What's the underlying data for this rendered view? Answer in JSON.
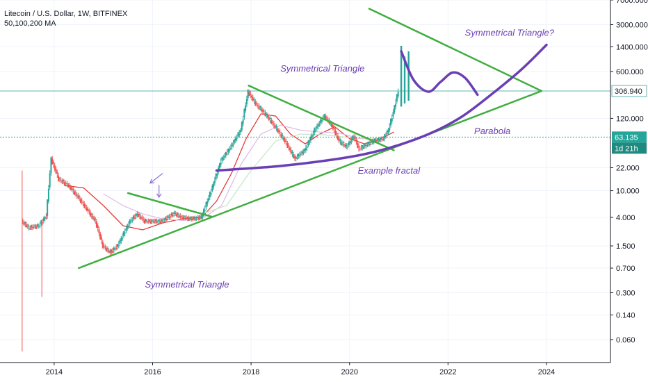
{
  "header": {
    "title": "Litecoin / U.S. Dollar, 1W, BITFINEX",
    "ma_label": "50,100,200 MA"
  },
  "chart_data": {
    "type": "candlestick",
    "scale": "log",
    "x_range": [
      2012.9,
      2025.3
    ],
    "y_range": [
      0.03,
      7000
    ],
    "x_ticks": [
      {
        "value": 2014,
        "label": "2014"
      },
      {
        "value": 2016,
        "label": "2016"
      },
      {
        "value": 2018,
        "label": "2018"
      },
      {
        "value": 2020,
        "label": "2020"
      },
      {
        "value": 2022,
        "label": "2022"
      },
      {
        "value": 2024,
        "label": "2024"
      }
    ],
    "y_ticks": [
      {
        "value": 7000,
        "label": "7000.000"
      },
      {
        "value": 3000,
        "label": "3000.000"
      },
      {
        "value": 1400,
        "label": "1400.000"
      },
      {
        "value": 600,
        "label": "600.000"
      },
      {
        "value": 120,
        "label": "120.000"
      },
      {
        "value": 22,
        "label": "22.000"
      },
      {
        "value": 10,
        "label": "10.000"
      },
      {
        "value": 4,
        "label": "4.000"
      },
      {
        "value": 1.5,
        "label": "1.500"
      },
      {
        "value": 0.7,
        "label": "0.700"
      },
      {
        "value": 0.3,
        "label": "0.300"
      },
      {
        "value": 0.14,
        "label": "0.140"
      },
      {
        "value": 0.06,
        "label": "0.060"
      }
    ],
    "price_levels": [
      {
        "value": 306.94,
        "label": "306.940",
        "color": "#5fb4b0"
      },
      {
        "value": 63.135,
        "label": "63.135",
        "color": "#26a69a",
        "sublabel": "1d 21h"
      }
    ],
    "price_path": [
      [
        2013.35,
        3.5
      ],
      [
        2013.5,
        2.8
      ],
      [
        2013.7,
        3.0
      ],
      [
        2013.85,
        4.2
      ],
      [
        2013.95,
        30
      ],
      [
        2014.1,
        15
      ],
      [
        2014.3,
        12
      ],
      [
        2014.5,
        8
      ],
      [
        2014.7,
        5
      ],
      [
        2014.85,
        3.5
      ],
      [
        2015.0,
        1.5
      ],
      [
        2015.15,
        1.2
      ],
      [
        2015.3,
        1.5
      ],
      [
        2015.45,
        2.5
      ],
      [
        2015.55,
        3.5
      ],
      [
        2015.7,
        4.5
      ],
      [
        2015.85,
        3.5
      ],
      [
        2016.0,
        3.5
      ],
      [
        2016.2,
        3.5
      ],
      [
        2016.45,
        4.6
      ],
      [
        2016.6,
        4.0
      ],
      [
        2016.8,
        3.8
      ],
      [
        2017.0,
        4.0
      ],
      [
        2017.2,
        10
      ],
      [
        2017.4,
        28
      ],
      [
        2017.6,
        45
      ],
      [
        2017.8,
        80
      ],
      [
        2017.95,
        300
      ],
      [
        2018.1,
        200
      ],
      [
        2018.3,
        140
      ],
      [
        2018.5,
        90
      ],
      [
        2018.7,
        55
      ],
      [
        2018.9,
        30
      ],
      [
        2019.1,
        40
      ],
      [
        2019.3,
        80
      ],
      [
        2019.5,
        130
      ],
      [
        2019.65,
        95
      ],
      [
        2019.8,
        55
      ],
      [
        2019.95,
        45
      ],
      [
        2020.1,
        65
      ],
      [
        2020.2,
        42
      ],
      [
        2020.35,
        48
      ],
      [
        2020.5,
        55
      ],
      [
        2020.7,
        60
      ],
      [
        2020.8,
        80
      ],
      [
        2020.9,
        150
      ],
      [
        2021.0,
        306.94
      ]
    ],
    "ma_lines": [
      {
        "name": "MA50",
        "color": "#e53935",
        "points": [
          [
            2014.2,
            12
          ],
          [
            2014.6,
            11
          ],
          [
            2015.0,
            6
          ],
          [
            2015.4,
            3
          ],
          [
            2015.8,
            2.6
          ],
          [
            2016.2,
            3.3
          ],
          [
            2016.6,
            3.8
          ],
          [
            2017.0,
            4.0
          ],
          [
            2017.3,
            7
          ],
          [
            2017.6,
            18
          ],
          [
            2017.9,
            60
          ],
          [
            2018.2,
            140
          ],
          [
            2018.5,
            130
          ],
          [
            2018.8,
            70
          ],
          [
            2019.1,
            50
          ],
          [
            2019.4,
            70
          ],
          [
            2019.7,
            90
          ],
          [
            2020.0,
            60
          ],
          [
            2020.3,
            50
          ],
          [
            2020.6,
            58
          ],
          [
            2020.9,
            75
          ]
        ]
      },
      {
        "name": "MA100",
        "color": "#e1bee7",
        "points": [
          [
            2015.0,
            9
          ],
          [
            2015.4,
            6
          ],
          [
            2015.8,
            4.5
          ],
          [
            2016.2,
            3.8
          ],
          [
            2016.6,
            3.6
          ],
          [
            2017.0,
            3.8
          ],
          [
            2017.4,
            6
          ],
          [
            2017.8,
            25
          ],
          [
            2018.2,
            70
          ],
          [
            2018.6,
            95
          ],
          [
            2019.0,
            80
          ],
          [
            2019.4,
            75
          ],
          [
            2019.8,
            72
          ],
          [
            2020.2,
            60
          ],
          [
            2020.6,
            58
          ]
        ]
      },
      {
        "name": "MA200",
        "color": "#c8e6c9",
        "points": [
          [
            2016.5,
            5.5
          ],
          [
            2017.0,
            4.5
          ],
          [
            2017.5,
            6
          ],
          [
            2018.0,
            20
          ],
          [
            2018.5,
            55
          ],
          [
            2019.0,
            70
          ],
          [
            2019.5,
            68
          ],
          [
            2020.0,
            62
          ],
          [
            2020.6,
            60
          ]
        ]
      }
    ],
    "drawings": [
      {
        "name": "symmetrical-triangle-1-upper",
        "color": "#3fae3f",
        "points": [
          [
            2015.5,
            9.2
          ],
          [
            2017.2,
            4.1
          ]
        ]
      },
      {
        "name": "symmetrical-triangle-1-lower",
        "color": "#3fae3f",
        "points": [
          [
            2014.5,
            0.7
          ],
          [
            2023.9,
            306.94
          ]
        ]
      },
      {
        "name": "symmetrical-triangle-2-upper",
        "color": "#3fae3f",
        "points": [
          [
            2017.95,
            370
          ],
          [
            2020.9,
            40
          ]
        ]
      },
      {
        "name": "big-triangle-upper",
        "color": "#3fae3f",
        "points": [
          [
            2020.4,
            5200
          ],
          [
            2023.9,
            306.94
          ]
        ]
      },
      {
        "name": "parabola",
        "color": "#6a3fb5",
        "points": [
          [
            2017.3,
            20
          ],
          [
            2018.5,
            23
          ],
          [
            2019.5,
            28
          ],
          [
            2020.3,
            35
          ],
          [
            2021.0,
            48
          ],
          [
            2021.7,
            75
          ],
          [
            2022.3,
            130
          ],
          [
            2022.9,
            280
          ],
          [
            2023.5,
            650
          ],
          [
            2024.0,
            1500
          ]
        ]
      },
      {
        "name": "example-fractal",
        "color": "#6a3fb5",
        "points": [
          [
            2021.05,
            1200
          ],
          [
            2021.3,
            450
          ],
          [
            2021.6,
            300
          ],
          [
            2021.85,
            420
          ],
          [
            2022.1,
            580
          ],
          [
            2022.35,
            480
          ],
          [
            2022.6,
            270
          ]
        ]
      },
      {
        "name": "arrow-diagonal",
        "color": "#8e6fd0",
        "points": [
          [
            2016.2,
            18
          ],
          [
            2015.95,
            13
          ]
        ]
      },
      {
        "name": "arrow-vertical",
        "color": "#8e6fd0",
        "points": [
          [
            2016.13,
            12
          ],
          [
            2016.13,
            8
          ]
        ]
      }
    ],
    "annotations": [
      {
        "name": "label-symmetrical-triangle-bottom",
        "text": "Symmetrical Triangle",
        "x": 2016.7,
        "y": 0.36
      },
      {
        "name": "label-symmetrical-triangle-top",
        "text": "Symmetrical Triangle",
        "x": 2019.45,
        "y": 600
      },
      {
        "name": "label-symmetrical-triangle-q",
        "text": "Symmetrical Triangle?",
        "x": 2023.25,
        "y": 2050
      },
      {
        "name": "label-parabola",
        "text": "Parabola",
        "x": 2022.9,
        "y": 70
      },
      {
        "name": "label-example-fractal",
        "text": "Example fractal",
        "x": 2020.8,
        "y": 18
      }
    ]
  }
}
